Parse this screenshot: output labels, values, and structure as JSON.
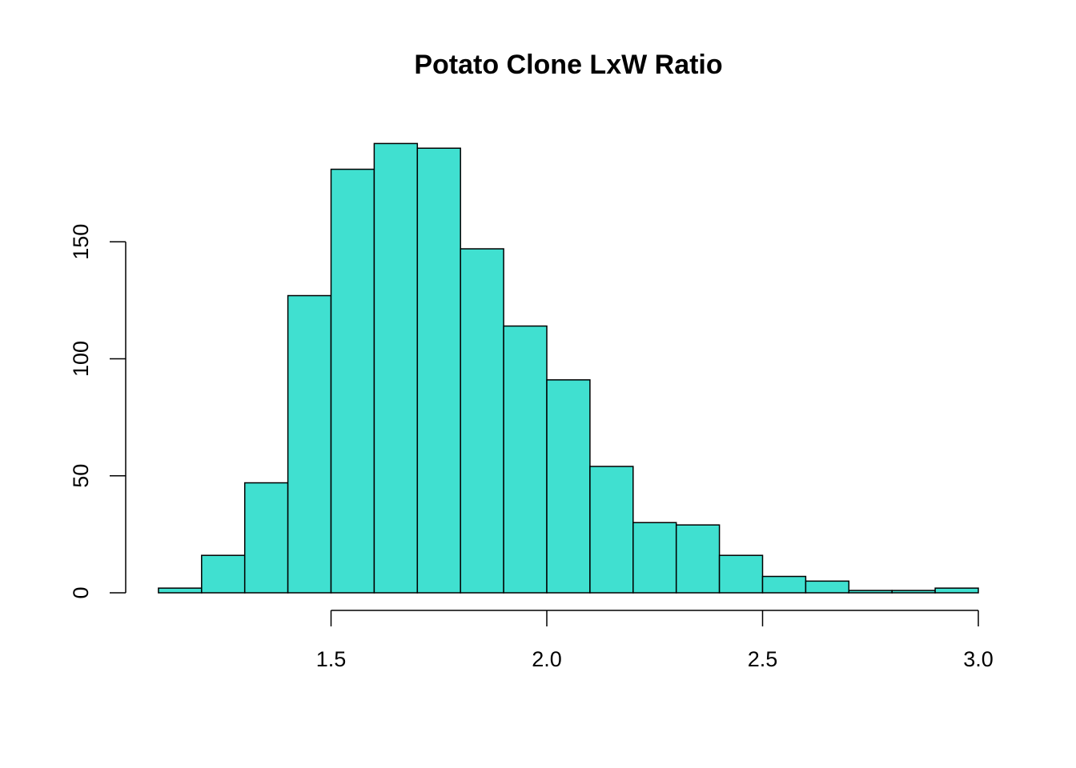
{
  "chart_data": {
    "type": "bar",
    "title": "Potato Clone LxW Ratio",
    "xlabel": "",
    "ylabel": "",
    "bin_edges": [
      1.1,
      1.2,
      1.3,
      1.4,
      1.5,
      1.6,
      1.7,
      1.8,
      1.9,
      2.0,
      2.1,
      2.2,
      2.3,
      2.4,
      2.5,
      2.6,
      2.7,
      2.8,
      2.9,
      3.0
    ],
    "values": [
      2,
      16,
      47,
      127,
      181,
      192,
      190,
      147,
      114,
      91,
      54,
      30,
      29,
      16,
      7,
      5,
      1,
      1,
      2
    ],
    "xlim": [
      1.0,
      3.1
    ],
    "ylim": [
      0,
      200
    ],
    "x_ticks": [
      1.5,
      2.0,
      2.5,
      3.0
    ],
    "x_tick_labels": [
      "1.5",
      "2.0",
      "2.5",
      "3.0"
    ],
    "y_ticks": [
      0,
      50,
      100,
      150
    ],
    "y_tick_labels": [
      "0",
      "50",
      "100",
      "150"
    ],
    "bar_color": "#40E0D0",
    "grid": false,
    "legend": "none"
  }
}
